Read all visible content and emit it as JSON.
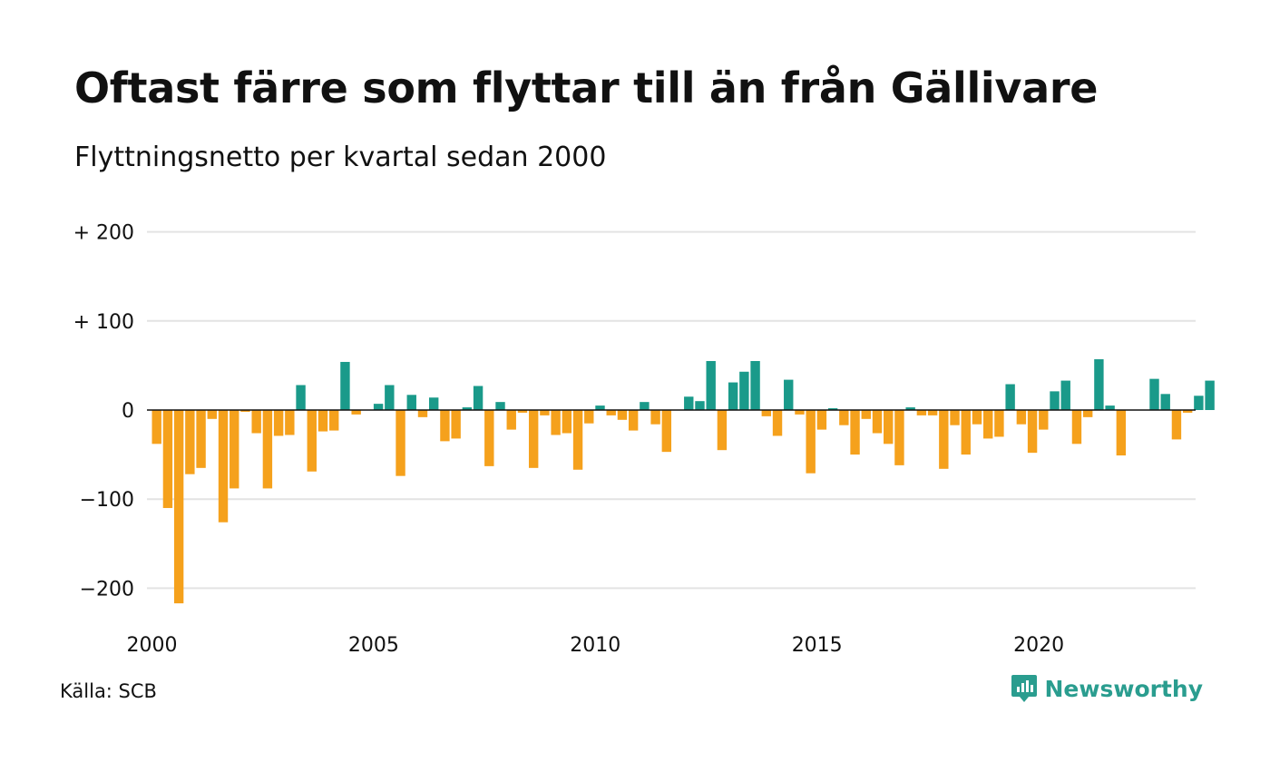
{
  "title": "Oftast färre som flyttar till än från Gällivare",
  "subtitle": "Flyttningsnetto per kvartal sedan 2000",
  "source": "Källa: SCB",
  "brand": "Newsworthy",
  "colors": {
    "positive": "#1a9a8a",
    "negative": "#f5a11c",
    "grid": "#e3e3e3",
    "axis": "#111111",
    "brand": "#2a9d8f"
  },
  "chart_data": {
    "type": "bar",
    "ylim": [
      -240,
      210
    ],
    "y_ticks": [
      {
        "value": 200,
        "label": "+ 200"
      },
      {
        "value": 100,
        "label": "+ 100"
      },
      {
        "value": 0,
        "label": "0"
      },
      {
        "value": -100,
        "label": "−100"
      },
      {
        "value": -200,
        "label": "−200"
      }
    ],
    "x_ticks": [
      {
        "value": 2000,
        "label": "2000"
      },
      {
        "value": 2005,
        "label": "2005"
      },
      {
        "value": 2010,
        "label": "2010"
      },
      {
        "value": 2015,
        "label": "2015"
      },
      {
        "value": 2020,
        "label": "2020"
      }
    ],
    "start_year": 2000,
    "values": [
      -38,
      -110,
      -217,
      -72,
      -65,
      -10,
      -126,
      -88,
      -2,
      -26,
      -88,
      -29,
      -28,
      28,
      -69,
      -24,
      -23,
      54,
      -5,
      0,
      7,
      28,
      -74,
      17,
      -8,
      14,
      -35,
      -32,
      3,
      27,
      -63,
      9,
      -22,
      -3,
      -65,
      -6,
      -28,
      -26,
      -67,
      -15,
      5,
      -6,
      -11,
      -23,
      9,
      -16,
      -47,
      0,
      15,
      10,
      55,
      -45,
      31,
      43,
      55,
      -7,
      -29,
      34,
      -5,
      -71,
      -22,
      2,
      -17,
      -50,
      -10,
      -26,
      -38,
      -62,
      3,
      -6,
      -6,
      -66,
      -17,
      -50,
      -16,
      -32,
      -30,
      29,
      -16,
      -48,
      -22,
      21,
      33,
      -38,
      -8,
      57,
      5,
      -51,
      0,
      0,
      35,
      18,
      -33,
      -3,
      16,
      33
    ]
  }
}
